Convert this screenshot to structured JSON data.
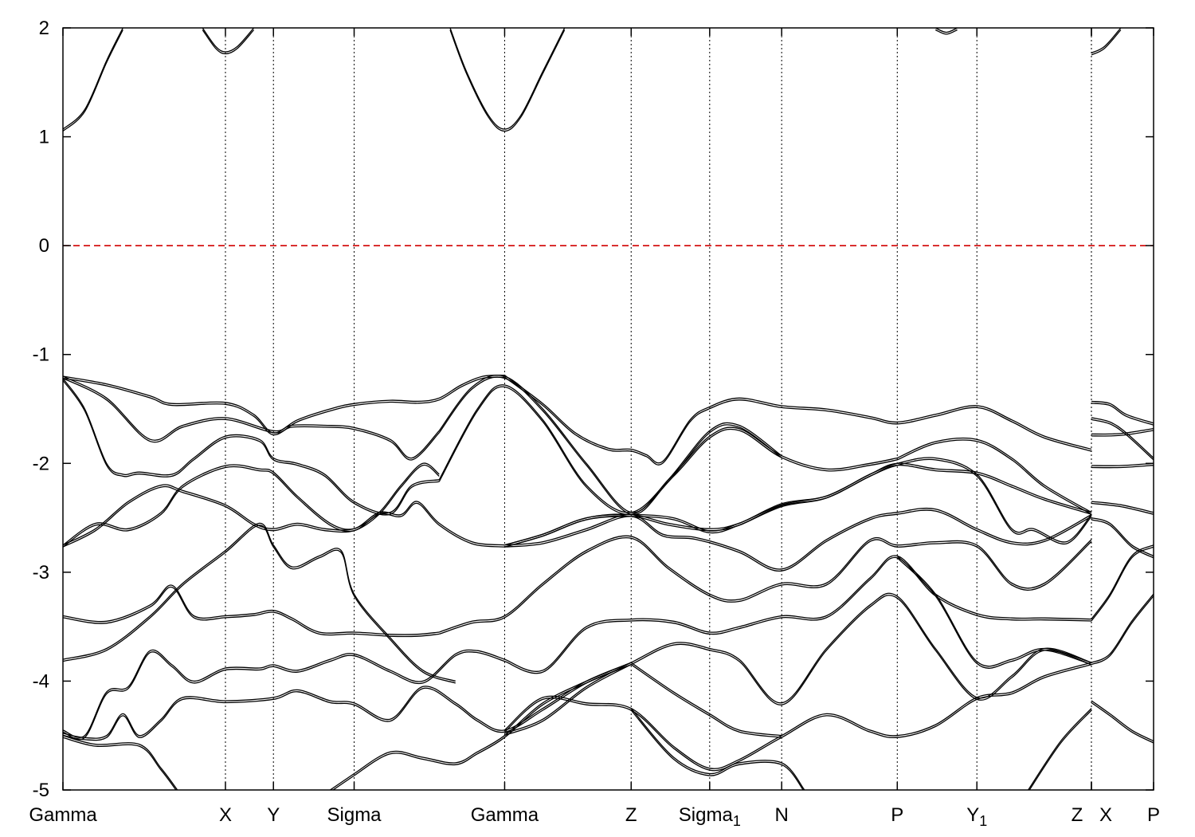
{
  "chart_data": {
    "type": "line",
    "title": "",
    "xlabel": "",
    "ylabel": "",
    "ylim": [
      -5,
      2
    ],
    "yticks": [
      2,
      1,
      0,
      -1,
      -2,
      -3,
      -4,
      -5
    ],
    "xlim": [
      0,
      1
    ],
    "kpoints": [
      {
        "label": "Gamma",
        "sub": "",
        "x": 0.0
      },
      {
        "label": "X",
        "sub": "",
        "x": 0.149
      },
      {
        "label": "Y",
        "sub": "",
        "x": 0.193
      },
      {
        "label": "Sigma",
        "sub": "",
        "x": 0.267
      },
      {
        "label": "Gamma",
        "sub": "",
        "x": 0.405
      },
      {
        "label": "Z",
        "sub": "",
        "x": 0.521
      },
      {
        "label": "Sigma",
        "sub": "1",
        "x": 0.593
      },
      {
        "label": "N",
        "sub": "",
        "x": 0.659
      },
      {
        "label": "P",
        "sub": "",
        "x": 0.765
      },
      {
        "label": "Y",
        "sub": "1",
        "x": 0.838
      },
      {
        "label": "Z",
        "sub": "",
        "x": 0.943
      },
      {
        "label": "X",
        "sub": "",
        "x": 0.943
      },
      {
        "label": "P",
        "sub": "",
        "x": 1.0
      }
    ],
    "fermi_level": 0,
    "series": [
      {
        "x": [
          0,
          0.02,
          0.04,
          0.055
        ],
        "y": [
          1.07,
          1.25,
          1.7,
          2.0
        ]
      },
      {
        "x": [
          0.128,
          0.14,
          0.149,
          0.16,
          0.175
        ],
        "y": [
          2.0,
          1.83,
          1.78,
          1.83,
          2.0
        ]
      },
      {
        "x": [
          0.355,
          0.37,
          0.39,
          0.405,
          0.42,
          0.44,
          0.46
        ],
        "y": [
          2.0,
          1.6,
          1.2,
          1.07,
          1.2,
          1.6,
          2.0
        ]
      },
      {
        "x": [
          0.8,
          0.81,
          0.82
        ],
        "y": [
          2.0,
          1.96,
          2.0
        ]
      },
      {
        "x": [
          0.943,
          0.955,
          0.97
        ],
        "y": [
          1.77,
          1.83,
          2.0
        ]
      },
      {
        "x": [
          0,
          0.04,
          0.08,
          0.1,
          0.149,
          0.175,
          0.193,
          0.215,
          0.245,
          0.267,
          0.3,
          0.325,
          0.345,
          0.365,
          0.385,
          0.405
        ],
        "y": [
          -1.2,
          -1.27,
          -1.38,
          -1.45,
          -1.44,
          -1.55,
          -1.72,
          -1.6,
          -1.5,
          -1.45,
          -1.42,
          -1.43,
          -1.4,
          -1.28,
          -1.2,
          -1.19
        ]
      },
      {
        "x": [
          0.405,
          0.44,
          0.47,
          0.5,
          0.521,
          0.535,
          0.55,
          0.575,
          0.593,
          0.62,
          0.659,
          0.7,
          0.74,
          0.765,
          0.8,
          0.838,
          0.87,
          0.9,
          0.943
        ],
        "y": [
          -1.19,
          -1.45,
          -1.72,
          -1.86,
          -1.87,
          -1.92,
          -1.98,
          -1.6,
          -1.48,
          -1.4,
          -1.47,
          -1.5,
          -1.57,
          -1.62,
          -1.55,
          -1.47,
          -1.6,
          -1.75,
          -1.87
        ]
      },
      {
        "x": [
          0,
          0.04,
          0.08,
          0.11,
          0.149,
          0.193,
          0.21,
          0.24,
          0.267,
          0.3,
          0.32,
          0.345
        ],
        "y": [
          -1.2,
          -1.4,
          -1.78,
          -1.65,
          -1.58,
          -1.7,
          -1.65,
          -1.65,
          -1.67,
          -1.78,
          -1.95,
          -1.7
        ]
      },
      {
        "x": [
          0.345,
          0.375,
          0.405,
          0.44,
          0.48,
          0.521,
          0.555,
          0.593,
          0.62,
          0.659
        ],
        "y": [
          -1.7,
          -1.3,
          -1.2,
          -1.5,
          -2.0,
          -2.45,
          -2.15,
          -1.7,
          -1.65,
          -1.93
        ]
      },
      {
        "x": [
          0,
          0.02,
          0.04,
          0.055,
          0.07,
          0.1,
          0.12,
          0.149,
          0.18,
          0.193,
          0.215,
          0.24,
          0.267,
          0.3,
          0.32,
          0.345
        ],
        "y": [
          -1.22,
          -1.5,
          -2.0,
          -2.1,
          -2.08,
          -2.1,
          -1.95,
          -1.75,
          -1.78,
          -1.95,
          -2.0,
          -2.1,
          -2.35,
          -2.45,
          -2.2,
          -2.15
        ]
      },
      {
        "x": [
          0.345,
          0.38,
          0.405,
          0.44,
          0.48,
          0.521,
          0.56,
          0.593,
          0.62,
          0.659,
          0.7,
          0.74,
          0.765
        ],
        "y": [
          -2.15,
          -1.5,
          -1.28,
          -1.6,
          -2.2,
          -2.45,
          -2.1,
          -1.75,
          -1.68,
          -1.93,
          -2.05,
          -2.0,
          -1.95
        ]
      },
      {
        "x": [
          0.765,
          0.8,
          0.838,
          0.87,
          0.9,
          0.943
        ],
        "y": [
          -1.95,
          -1.8,
          -1.78,
          -1.95,
          -2.2,
          -2.45
        ]
      },
      {
        "x": [
          0,
          0.03,
          0.06,
          0.09,
          0.11,
          0.149,
          0.175,
          0.193,
          0.215,
          0.24,
          0.267,
          0.29,
          0.31,
          0.33,
          0.345
        ],
        "y": [
          -2.75,
          -2.6,
          -2.35,
          -2.2,
          -2.25,
          -2.38,
          -2.55,
          -2.6,
          -2.55,
          -2.6,
          -2.6,
          -2.45,
          -2.2,
          -2.0,
          -2.1
        ]
      },
      {
        "x": [
          0,
          0.03,
          0.06,
          0.09,
          0.11,
          0.149,
          0.18,
          0.193,
          0.215,
          0.245,
          0.267,
          0.29,
          0.31,
          0.325,
          0.345,
          0.375,
          0.405
        ],
        "y": [
          -2.75,
          -2.55,
          -2.6,
          -2.45,
          -2.2,
          -2.02,
          -2.05,
          -2.08,
          -2.3,
          -2.55,
          -2.6,
          -2.45,
          -2.47,
          -2.35,
          -2.55,
          -2.72,
          -2.75
        ]
      },
      {
        "x": [
          0.405,
          0.44,
          0.48,
          0.521,
          0.555,
          0.593,
          0.62,
          0.659,
          0.7,
          0.74,
          0.765,
          0.8,
          0.838,
          0.87,
          0.9,
          0.943
        ],
        "y": [
          -2.75,
          -2.65,
          -2.5,
          -2.47,
          -2.55,
          -2.6,
          -2.55,
          -2.37,
          -2.3,
          -2.1,
          -2.0,
          -2.05,
          -2.08,
          -2.2,
          -2.32,
          -2.45
        ]
      },
      {
        "x": [
          0.405,
          0.44,
          0.48,
          0.521,
          0.55,
          0.58,
          0.62,
          0.659,
          0.7,
          0.74,
          0.765,
          0.8,
          0.838,
          0.87,
          0.9,
          0.943
        ],
        "y": [
          -2.75,
          -2.72,
          -2.6,
          -2.47,
          -2.65,
          -2.68,
          -2.8,
          -2.97,
          -2.7,
          -2.5,
          -2.45,
          -2.42,
          -2.6,
          -2.72,
          -2.7,
          -2.47
        ]
      },
      {
        "x": [
          0.405,
          0.44,
          0.48,
          0.521,
          0.56,
          0.593,
          0.62,
          0.659,
          0.7,
          0.74,
          0.765,
          0.8,
          0.838,
          0.87,
          0.89,
          0.92,
          0.943
        ],
        "y": [
          -2.75,
          -2.65,
          -2.5,
          -2.47,
          -2.5,
          -2.62,
          -2.55,
          -2.38,
          -2.3,
          -2.1,
          -2.0,
          -1.95,
          -2.1,
          -2.6,
          -2.6,
          -2.72,
          -2.47
        ]
      },
      {
        "x": [
          0,
          0.04,
          0.08,
          0.11,
          0.149,
          0.18,
          0.193,
          0.21,
          0.235,
          0.255,
          0.267,
          0.3,
          0.33,
          0.36
        ],
        "y": [
          -3.8,
          -3.7,
          -3.4,
          -3.1,
          -2.8,
          -2.55,
          -2.75,
          -2.95,
          -2.85,
          -2.8,
          -3.2,
          -3.6,
          -3.9,
          -4.0
        ]
      },
      {
        "x": [
          0,
          0.04,
          0.08,
          0.1,
          0.12,
          0.149,
          0.175,
          0.193,
          0.21,
          0.235,
          0.267,
          0.3,
          0.325,
          0.345
        ],
        "y": [
          -3.4,
          -3.45,
          -3.3,
          -3.12,
          -3.4,
          -3.4,
          -3.38,
          -3.35,
          -3.42,
          -3.55,
          -3.55,
          -3.57,
          -3.57,
          -3.55
        ]
      },
      {
        "x": [
          0.345,
          0.375,
          0.405,
          0.44,
          0.48,
          0.521,
          0.555,
          0.593,
          0.62,
          0.659,
          0.7,
          0.74,
          0.765,
          0.8,
          0.838,
          0.87,
          0.9,
          0.943
        ],
        "y": [
          -3.55,
          -3.45,
          -3.4,
          -3.1,
          -2.8,
          -2.67,
          -2.95,
          -3.2,
          -3.25,
          -3.1,
          -3.1,
          -2.7,
          -2.75,
          -2.72,
          -2.75,
          -3.1,
          -3.1,
          -2.7
        ]
      },
      {
        "x": [
          0.405,
          0.44,
          0.48,
          0.521,
          0.56,
          0.593,
          0.62,
          0.659,
          0.7,
          0.74,
          0.765,
          0.8,
          0.838,
          0.87,
          0.9,
          0.943
        ],
        "y": [
          -3.8,
          -3.9,
          -3.5,
          -3.43,
          -3.45,
          -3.55,
          -3.5,
          -3.4,
          -3.4,
          -3.05,
          -2.85,
          -3.2,
          -3.38,
          -3.42,
          -3.42,
          -3.43
        ]
      },
      {
        "x": [
          0.765,
          0.8,
          0.838,
          0.87,
          0.9,
          0.943
        ],
        "y": [
          -2.85,
          -3.2,
          -3.82,
          -3.8,
          -3.7,
          -3.83
        ]
      },
      {
        "x": [
          0,
          0.02,
          0.04,
          0.06,
          0.08,
          0.1,
          0.12,
          0.149,
          0.18,
          0.193,
          0.215,
          0.245,
          0.267,
          0.3,
          0.33,
          0.36,
          0.38,
          0.405
        ],
        "y": [
          -4.45,
          -4.5,
          -4.1,
          -4.05,
          -3.72,
          -3.85,
          -4.0,
          -3.88,
          -3.88,
          -3.85,
          -3.9,
          -3.8,
          -3.75,
          -3.9,
          -4.0,
          -3.75,
          -3.72,
          -3.8
        ]
      },
      {
        "x": [
          0,
          0.02,
          0.04,
          0.055,
          0.07,
          0.09,
          0.11,
          0.149,
          0.193,
          0.215,
          0.245,
          0.267,
          0.3,
          0.33,
          0.36,
          0.38,
          0.405,
          0.44,
          0.48,
          0.521
        ],
        "y": [
          -4.48,
          -4.52,
          -4.5,
          -4.3,
          -4.5,
          -4.35,
          -4.15,
          -4.18,
          -4.15,
          -4.08,
          -4.18,
          -4.2,
          -4.35,
          -4.05,
          -4.2,
          -4.35,
          -4.45,
          -4.25,
          -4.0,
          -3.83
        ]
      },
      {
        "x": [
          0.405,
          0.44,
          0.48,
          0.521,
          0.56,
          0.593,
          0.62,
          0.659,
          0.7,
          0.74,
          0.765,
          0.8,
          0.838,
          0.87,
          0.9,
          0.943
        ],
        "y": [
          -4.48,
          -4.35,
          -4.05,
          -3.83,
          -3.65,
          -3.7,
          -3.8,
          -4.2,
          -3.7,
          -3.3,
          -3.22,
          -3.7,
          -4.15,
          -3.95,
          -3.7,
          -3.83
        ]
      },
      {
        "x": [
          0.405,
          0.44,
          0.48,
          0.521,
          0.56,
          0.593,
          0.62,
          0.659,
          0.7,
          0.74,
          0.765,
          0.8,
          0.838,
          0.87,
          0.9,
          0.943
        ],
        "y": [
          -4.45,
          -4.15,
          -4.2,
          -4.25,
          -4.6,
          -4.8,
          -4.72,
          -4.5,
          -4.3,
          -4.45,
          -4.5,
          -4.4,
          -4.15,
          -4.1,
          -3.95,
          -3.83
        ]
      },
      {
        "x": [
          0.521,
          0.56,
          0.593,
          0.62,
          0.659
        ],
        "y": [
          -3.83,
          -4.1,
          -4.3,
          -4.45,
          -4.5
        ]
      },
      {
        "x": [
          0.267,
          0.3,
          0.33,
          0.36,
          0.38,
          0.405,
          0.44,
          0.48,
          0.521
        ],
        "y": [
          -4.85,
          -4.65,
          -4.7,
          -4.75,
          -4.65,
          -4.5,
          -4.2,
          -4.0,
          -3.83
        ]
      },
      {
        "x": [
          0.521,
          0.56,
          0.593,
          0.62,
          0.659,
          0.68
        ],
        "y": [
          -4.25,
          -4.7,
          -4.85,
          -4.75,
          -4.75,
          -5.0
        ]
      },
      {
        "x": [
          0,
          0.03,
          0.07,
          0.09,
          0.105
        ],
        "y": [
          -4.5,
          -4.58,
          -4.58,
          -4.8,
          -5.0
        ]
      },
      {
        "x": [
          0.245,
          0.267
        ],
        "y": [
          -5.0,
          -4.85
        ]
      },
      {
        "x": [
          0.885,
          0.915,
          0.943
        ],
        "y": [
          -5.0,
          -4.55,
          -4.25
        ]
      },
      {
        "x": [
          0.943,
          0.96,
          0.975,
          1.0
        ],
        "y": [
          -1.43,
          -1.45,
          -1.55,
          -1.63
        ]
      },
      {
        "x": [
          0.943,
          0.96,
          0.975,
          1.0
        ],
        "y": [
          -1.58,
          -1.62,
          -1.72,
          -1.95
        ]
      },
      {
        "x": [
          0.943,
          0.96,
          0.975,
          1.0
        ],
        "y": [
          -1.73,
          -1.73,
          -1.72,
          -1.68
        ]
      },
      {
        "x": [
          0.943,
          0.97,
          1.0
        ],
        "y": [
          -2.02,
          -2.02,
          -2.0
        ]
      },
      {
        "x": [
          0.943,
          0.97,
          1.0
        ],
        "y": [
          -2.35,
          -2.38,
          -2.45
        ]
      },
      {
        "x": [
          0.943,
          0.96,
          0.98,
          1.0
        ],
        "y": [
          -2.5,
          -2.55,
          -2.75,
          -2.85
        ]
      },
      {
        "x": [
          0.943,
          0.96,
          0.98,
          1.0
        ],
        "y": [
          -3.43,
          -3.2,
          -2.85,
          -2.75
        ]
      },
      {
        "x": [
          0.943,
          0.96,
          0.98,
          1.0
        ],
        "y": [
          -3.83,
          -3.75,
          -3.45,
          -3.2
        ]
      },
      {
        "x": [
          0.943,
          0.96,
          0.98,
          1.0
        ],
        "y": [
          -4.18,
          -4.3,
          -4.45,
          -4.55
        ]
      }
    ]
  }
}
